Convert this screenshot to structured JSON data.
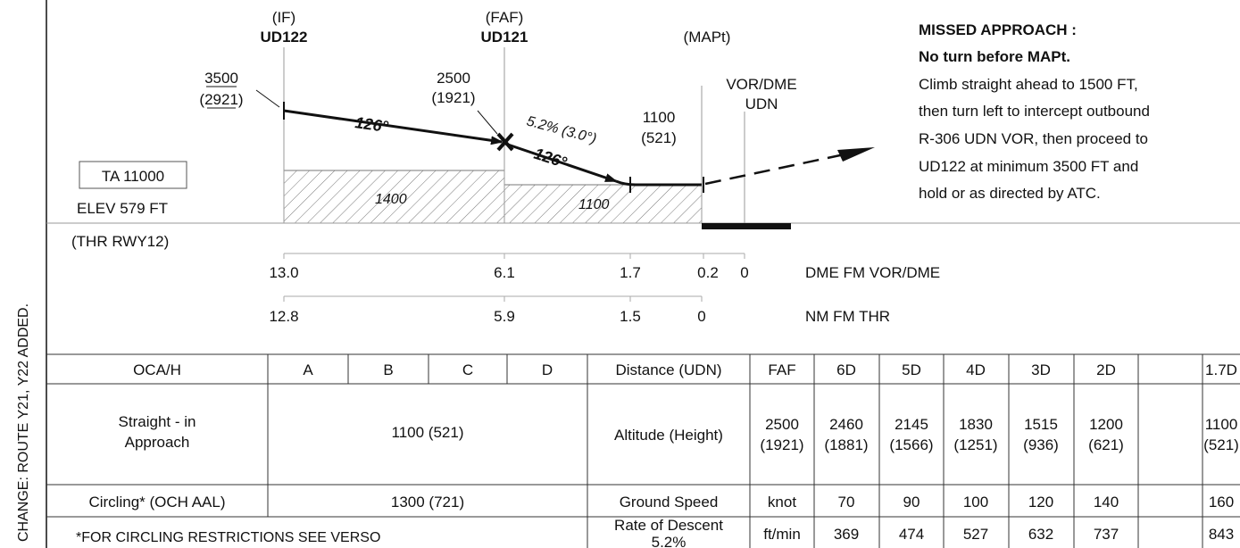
{
  "side_note": "CHANGE: ROUTE Y21, Y22 ADDED.",
  "fixes": {
    "if_role": "(IF)",
    "if_name": "UD122",
    "faf_role": "(FAF)",
    "faf_name": "UD121",
    "mapt_role": "(MAPt)",
    "vor_line1": "VOR/DME",
    "vor_line2": "UDN"
  },
  "altitudes": {
    "if_alt": "3500",
    "if_height": "(2921)",
    "faf_alt": "2500",
    "faf_height": "(1921)",
    "mda_alt": "1100",
    "mda_height": "(521)"
  },
  "track1": "126°",
  "track2": "126°",
  "gradient": "5.2% (3.0°)",
  "min_segment_alt1": "1400",
  "min_segment_alt2": "1100",
  "ta": "TA 11000",
  "elev": "ELEV 579 FT",
  "thr": "(THR RWY12)",
  "missed_approach": {
    "title": "MISSED APPROACH :",
    "subtitle": "No turn before MAPt.",
    "lines": [
      "Climb straight ahead to 1500 FT,",
      "then turn left to intercept outbound",
      "R-306 UDN VOR, then proceed to",
      "UD122 at minimum 3500 FT and",
      "hold or as directed by ATC."
    ]
  },
  "dme_scale": {
    "values": [
      "13.0",
      "6.1",
      "1.7",
      "0.2",
      "0"
    ],
    "label": "DME FM VOR/DME"
  },
  "thr_scale": {
    "values": [
      "12.8",
      "5.9",
      "1.5",
      "0"
    ],
    "label": "NM FM THR"
  },
  "oca_table": {
    "headers": [
      "OCA/H",
      "A",
      "B",
      "C",
      "D"
    ],
    "straight_in_label1": "Straight - in",
    "straight_in_label2": "Approach",
    "straight_in_value": "1100 (521)",
    "circling_label": "Circling* (OCH AAL)",
    "circling_value": "1300 (721)",
    "note": "*FOR CIRCLING RESTRICTIONS SEE VERSO"
  },
  "distance_table": {
    "distance_label": "Distance (UDN)",
    "distances": [
      "FAF",
      "6D",
      "5D",
      "4D",
      "3D",
      "2D",
      "1.7D"
    ],
    "altitude_label": "Altitude (Height)",
    "altitudes": [
      "2500",
      "2460",
      "2145",
      "1830",
      "1515",
      "1200",
      "1100"
    ],
    "heights": [
      "(1921)",
      "(1881)",
      "(1566)",
      "(1251)",
      "(936)",
      "(621)",
      "(521)"
    ]
  },
  "speed_table": {
    "gs_label": "Ground Speed",
    "gs_unit": "knot",
    "speeds": [
      "70",
      "90",
      "100",
      "120",
      "140",
      "160"
    ],
    "rod_label1": "Rate of Descent",
    "rod_label2": "5.2%",
    "rod_unit": "ft/min",
    "rates": [
      "369",
      "474",
      "527",
      "632",
      "737",
      "843"
    ]
  }
}
